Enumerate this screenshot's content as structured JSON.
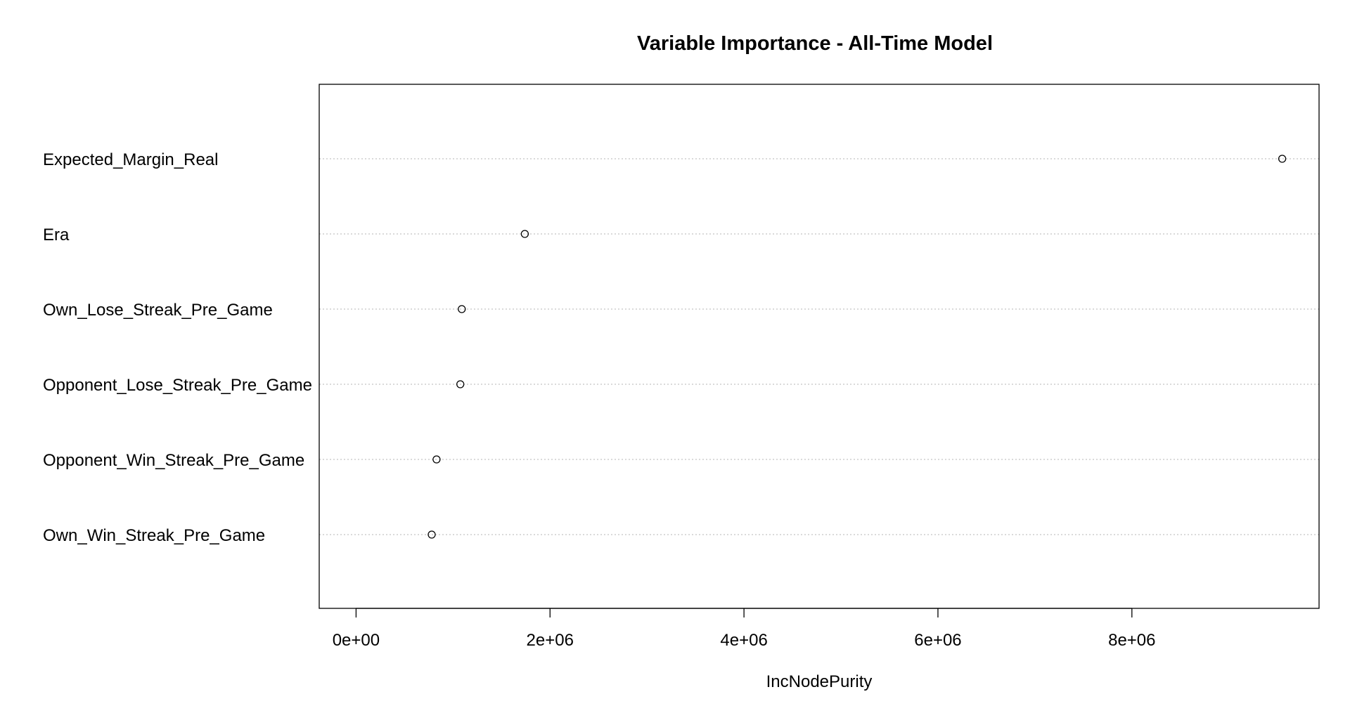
{
  "chart_data": {
    "type": "scatter",
    "title": "Variable Importance - All-Time Model",
    "xlabel": "IncNodePurity",
    "ylabel": "",
    "categories": [
      "Expected_Margin_Real",
      "Era",
      "Own_Lose_Streak_Pre_Game",
      "Opponent_Lose_Streak_Pre_Game",
      "Opponent_Win_Streak_Pre_Game",
      "Own_Win_Streak_Pre_Game"
    ],
    "values": [
      9550000,
      1740000,
      1090000,
      1075000,
      830000,
      780000
    ],
    "xlim": [
      -380000,
      9930000
    ],
    "x_ticks": [
      0,
      2000000,
      4000000,
      6000000,
      8000000
    ],
    "x_tick_labels": [
      "0e+00",
      "2e+06",
      "4e+06",
      "6e+06",
      "8e+06"
    ],
    "grid": "dotted horizontal lines per category",
    "legend": "none"
  }
}
